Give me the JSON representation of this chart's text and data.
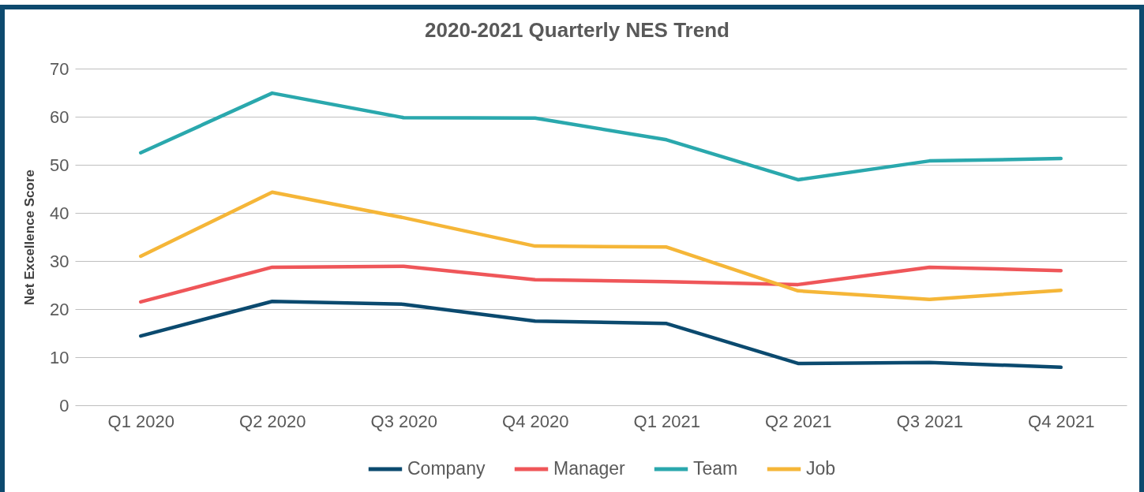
{
  "chart_data": {
    "type": "line",
    "title": "2020-2021 Quarterly NES Trend",
    "ylabel": "Net Excellence Score",
    "categories": [
      "Q1 2020",
      "Q2 2020",
      "Q3 2020",
      "Q4 2020",
      "Q1 2021",
      "Q2 2021",
      "Q3 2021",
      "Q4 2021"
    ],
    "series": [
      {
        "name": "Company",
        "color": "#0b4a6f",
        "values": [
          14.4,
          21.6,
          21.0,
          17.5,
          17.0,
          8.7,
          8.9,
          7.9
        ]
      },
      {
        "name": "Manager",
        "color": "#ef5659",
        "values": [
          21.5,
          28.7,
          28.9,
          26.1,
          25.7,
          25.1,
          28.7,
          28.0
        ]
      },
      {
        "name": "Team",
        "color": "#2aa8ad",
        "values": [
          52.5,
          64.9,
          59.8,
          59.7,
          55.2,
          46.9,
          50.8,
          51.3
        ]
      },
      {
        "name": "Job",
        "color": "#f5b638",
        "values": [
          31.0,
          44.3,
          39.0,
          33.1,
          32.9,
          23.8,
          22.0,
          23.9
        ]
      }
    ],
    "ylim": [
      0,
      70
    ],
    "yticks": [
      0,
      10,
      20,
      30,
      40,
      50,
      60,
      70
    ],
    "grid": "y",
    "legend": "bottom"
  }
}
